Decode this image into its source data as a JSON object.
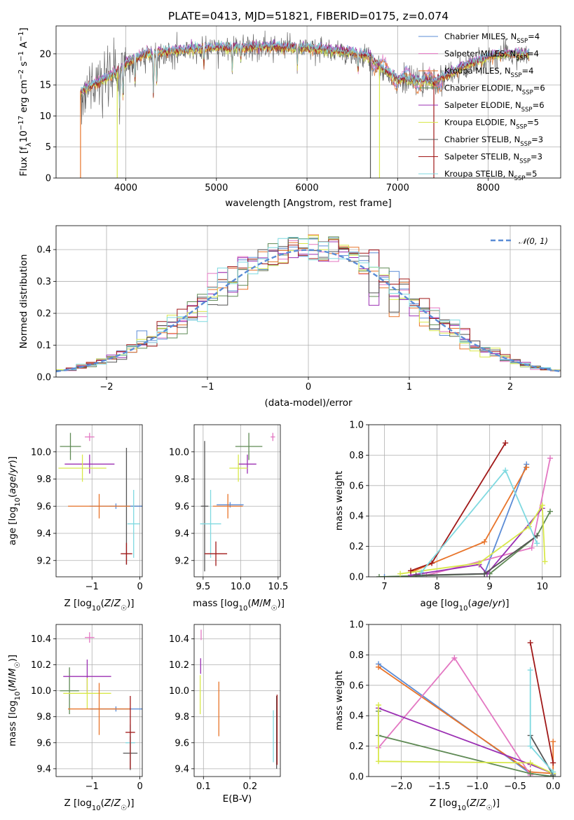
{
  "colors": {
    "Chabrier MILES": "#5b8cd6",
    "Salpeter MILES": "#e377c2",
    "Kroupa MILES": "#e8742a",
    "Chabrier ELODIE": "#5f8a55",
    "Salpeter ELODIE": "#9b2fb3",
    "Kroupa ELODIE": "#d8e84a",
    "Chabrier STELIB": "#555555",
    "Salpeter STELIB": "#a01818",
    "Kroupa STELIB": "#7fd9e0",
    "normal": "#5b8cd6"
  },
  "chart_data": [
    {
      "id": "spectrum",
      "type": "line",
      "title": "PLATE=0413, MJD=51821, FIBERID=0175, z=0.074",
      "xlabel": "wavelength [Angstrom, rest frame]",
      "ylabel": "Flux [fλ10⁻¹⁷ erg cm⁻² s⁻¹ Å⁻¹]",
      "xlim": [
        3230,
        8800
      ],
      "ylim": [
        0,
        24.5
      ],
      "xticks": [
        4000,
        5000,
        6000,
        7000,
        8000
      ],
      "yticks": [
        0,
        5,
        10,
        15,
        20
      ],
      "legend_position": "upper right",
      "legend": [
        {
          "model": "Chabrier MILES",
          "label": "Chabrier MILES, N",
          "sub": "SSP",
          "n": "=4"
        },
        {
          "model": "Salpeter MILES",
          "label": "Salpeter MILES, N",
          "sub": "SSP",
          "n": "=4"
        },
        {
          "model": "Kroupa MILES",
          "label": "Kroupa MILES, N",
          "sub": "SSP",
          "n": "=4"
        },
        {
          "model": "Chabrier ELODIE",
          "label": "Chabrier ELODIE, N",
          "sub": "SSP",
          "n": "=6"
        },
        {
          "model": "Salpeter ELODIE",
          "label": "Salpeter ELODIE, N",
          "sub": "SSP",
          "n": "=6"
        },
        {
          "model": "Kroupa ELODIE",
          "label": "Kroupa ELODIE, N",
          "sub": "SSP",
          "n": "=5"
        },
        {
          "model": "Chabrier STELIB",
          "label": "Chabrier STELIB, N",
          "sub": "SSP",
          "n": "=3"
        },
        {
          "model": "Salpeter STELIB",
          "label": "Salpeter STELIB, N",
          "sub": "SSP",
          "n": "=3"
        },
        {
          "model": "Kroupa STELIB",
          "label": "Kroupa STELIB, N",
          "sub": "SSP",
          "n": "=5"
        }
      ],
      "data_range": [
        3500,
        8450
      ],
      "continuum": [
        [
          3500,
          14
        ],
        [
          3700,
          15.5
        ],
        [
          3900,
          17
        ],
        [
          4000,
          18.5
        ],
        [
          4200,
          20
        ],
        [
          4500,
          20.5
        ],
        [
          5000,
          21
        ],
        [
          5500,
          21.2
        ],
        [
          6000,
          21
        ],
        [
          6500,
          20.2
        ],
        [
          6700,
          19.5
        ],
        [
          6800,
          18
        ],
        [
          7000,
          16
        ],
        [
          7400,
          15.5
        ],
        [
          7800,
          18.5
        ],
        [
          8100,
          20
        ],
        [
          8450,
          20
        ]
      ],
      "absorption_lines": [
        [
          3933,
          6
        ],
        [
          3969,
          5
        ],
        [
          4102,
          4
        ],
        [
          4304,
          7
        ],
        [
          4341,
          5
        ],
        [
          4861,
          3
        ],
        [
          5175,
          4
        ],
        [
          5270,
          2
        ],
        [
          5893,
          3
        ],
        [
          6563,
          3
        ]
      ],
      "spikes": [
        3500,
        3905,
        6700,
        6800,
        7400
      ]
    },
    {
      "id": "residuals",
      "type": "histogram",
      "xlabel": "(data-model)/error",
      "ylabel": "Normed distribution",
      "xlim": [
        -2.5,
        2.5
      ],
      "ylim": [
        0,
        0.475
      ],
      "xticks": [
        -2,
        -1,
        0,
        1,
        2
      ],
      "yticks": [
        0.0,
        0.1,
        0.2,
        0.3,
        0.4
      ],
      "bin_width": 0.1,
      "legend_position": "upper right",
      "legend": {
        "label": "𝒩(0, 1)",
        "style": "dashed"
      },
      "normal": {
        "mu": 0,
        "sigma": 1
      }
    },
    {
      "id": "age_vs_Z",
      "type": "errorbar",
      "xlabel": "Z [log₁₀(Z/Z☉)]",
      "ylabel": "age  [log₁₀(age/yr)]",
      "xlim": [
        -1.75,
        0.05
      ],
      "ylim": [
        9.08,
        10.2
      ],
      "xticks": [
        -1,
        0
      ],
      "yticks": [
        9.2,
        9.4,
        9.6,
        9.8,
        10.0
      ],
      "points": [
        {
          "model": "Salpeter MILES",
          "x": -1.05,
          "xerr": 0.1,
          "y": 10.11,
          "yerr": 0.03
        },
        {
          "model": "Chabrier ELODIE",
          "x": -1.45,
          "xerr": 0.22,
          "y": 10.04,
          "yerr": 0.1
        },
        {
          "model": "Salpeter ELODIE",
          "x": -1.05,
          "xerr": 0.52,
          "y": 9.91,
          "yerr": 0.07
        },
        {
          "model": "Kroupa ELODIE",
          "x": -1.2,
          "xerr": 0.5,
          "y": 9.88,
          "yerr": 0.1
        },
        {
          "model": "Chabrier STELIB",
          "x": -0.28,
          "xerr": 0.35,
          "y": 9.6,
          "yerr": 0.43
        },
        {
          "model": "Chabrier MILES",
          "x": -0.5,
          "xerr": 0.55,
          "y": 9.6,
          "yerr": 0.02
        },
        {
          "model": "Kroupa MILES",
          "x": -0.85,
          "xerr": 0.65,
          "y": 9.6,
          "yerr": 0.09
        },
        {
          "model": "Kroupa STELIB",
          "x": -0.13,
          "xerr": 0.13,
          "y": 9.47,
          "yerr": 0.25
        },
        {
          "model": "Salpeter STELIB",
          "x": -0.28,
          "xerr": 0.12,
          "y": 9.25,
          "yerr": 0.08
        }
      ]
    },
    {
      "id": "age_vs_mass",
      "type": "errorbar",
      "xlabel": "mass [log₁₀(M/M☉)]",
      "ylabel": "",
      "xlim": [
        9.38,
        10.53
      ],
      "ylim": [
        9.08,
        10.2
      ],
      "xticks": [
        9.5,
        10.0,
        10.5
      ],
      "yticks": [
        9.2,
        9.4,
        9.6,
        9.8,
        10.0
      ],
      "points": [
        {
          "model": "Salpeter MILES",
          "x": 10.43,
          "xerr": 0.03,
          "y": 10.11,
          "yerr": 0.03
        },
        {
          "model": "Chabrier ELODIE",
          "x": 10.11,
          "xerr": 0.18,
          "y": 10.04,
          "yerr": 0.1
        },
        {
          "model": "Salpeter ELODIE",
          "x": 10.09,
          "xerr": 0.12,
          "y": 9.91,
          "yerr": 0.07
        },
        {
          "model": "Kroupa ELODIE",
          "x": 9.97,
          "xerr": 0.12,
          "y": 9.88,
          "yerr": 0.1
        },
        {
          "model": "Chabrier STELIB",
          "x": 9.52,
          "xerr": 0.05,
          "y": 9.6,
          "yerr": 0.48
        },
        {
          "model": "Chabrier MILES",
          "x": 9.86,
          "xerr": 0.18,
          "y": 9.61,
          "yerr": 0.02
        },
        {
          "model": "Kroupa MILES",
          "x": 9.83,
          "xerr": 0.2,
          "y": 9.6,
          "yerr": 0.09
        },
        {
          "model": "Kroupa STELIB",
          "x": 9.6,
          "xerr": 0.14,
          "y": 9.47,
          "yerr": 0.25
        },
        {
          "model": "Salpeter STELIB",
          "x": 9.67,
          "xerr": 0.15,
          "y": 9.25,
          "yerr": 0.09
        }
      ]
    },
    {
      "id": "massweight_vs_age",
      "type": "line",
      "xlabel": "age  [log₁₀(age/yr)]",
      "ylabel": "mass weight",
      "xlim": [
        6.7,
        10.35
      ],
      "ylim": [
        0,
        1.0
      ],
      "xticks": [
        7,
        8,
        9,
        10
      ],
      "yticks": [
        0.0,
        0.2,
        0.4,
        0.6,
        0.8,
        1.0
      ],
      "series": [
        {
          "model": "Chabrier MILES",
          "x": [
            7.0,
            8.9,
            9.7
          ],
          "y": [
            0.0,
            0.02,
            0.74
          ]
        },
        {
          "model": "Salpeter MILES",
          "x": [
            7.8,
            9.8,
            10.15
          ],
          "y": [
            0.01,
            0.19,
            0.78
          ]
        },
        {
          "model": "Kroupa MILES",
          "x": [
            7.5,
            8.9,
            9.7
          ],
          "y": [
            0.03,
            0.23,
            0.72
          ]
        },
        {
          "model": "Chabrier ELODIE",
          "x": [
            6.9,
            9.0,
            9.9,
            10.15
          ],
          "y": [
            0.0,
            0.02,
            0.27,
            0.43
          ]
        },
        {
          "model": "Salpeter ELODIE",
          "x": [
            7.5,
            8.8,
            8.95,
            10.0
          ],
          "y": [
            0.01,
            0.08,
            0.02,
            0.45
          ]
        },
        {
          "model": "Kroupa ELODIE",
          "x": [
            7.3,
            8.8,
            9.75,
            10.0,
            10.05
          ],
          "y": [
            0.02,
            0.09,
            0.33,
            0.47,
            0.1
          ]
        },
        {
          "model": "Chabrier STELIB",
          "x": [
            7.6,
            8.9,
            9.9
          ],
          "y": [
            0.01,
            0.02,
            0.27
          ]
        },
        {
          "model": "Salpeter STELIB",
          "x": [
            7.5,
            7.9,
            9.3
          ],
          "y": [
            0.04,
            0.09,
            0.88
          ]
        },
        {
          "model": "Kroupa STELIB",
          "x": [
            7.7,
            9.3,
            9.9
          ],
          "y": [
            0.03,
            0.7,
            0.22
          ]
        }
      ]
    },
    {
      "id": "mass_vs_Z",
      "type": "errorbar",
      "xlabel": "Z [log₁₀(Z/Z☉)]",
      "ylabel": "mass [log₁₀(M/M☉)]",
      "xlim": [
        -1.75,
        0.05
      ],
      "ylim": [
        9.34,
        10.51
      ],
      "xticks": [
        -1,
        0
      ],
      "yticks": [
        9.4,
        9.6,
        9.8,
        10.0,
        10.2,
        10.4
      ],
      "points": [
        {
          "model": "Salpeter MILES",
          "x": -1.05,
          "xerr": 0.1,
          "y": 10.41,
          "yerr": 0.04
        },
        {
          "model": "Chabrier ELODIE",
          "x": -1.47,
          "xerr": 0.2,
          "y": 10.0,
          "yerr": 0.18
        },
        {
          "model": "Salpeter ELODIE",
          "x": -1.1,
          "xerr": 0.5,
          "y": 10.11,
          "yerr": 0.13
        },
        {
          "model": "Kroupa ELODIE",
          "x": -1.1,
          "xerr": 0.5,
          "y": 9.98,
          "yerr": 0.12
        },
        {
          "model": "Chabrier MILES",
          "x": -0.5,
          "xerr": 0.55,
          "y": 9.86,
          "yerr": 0.02
        },
        {
          "model": "Kroupa MILES",
          "x": -0.85,
          "xerr": 0.65,
          "y": 9.86,
          "yerr": 0.2
        },
        {
          "model": "Chabrier STELIB",
          "x": -0.2,
          "xerr": 0.15,
          "y": 9.52,
          "yerr": 0.13
        },
        {
          "model": "Kroupa STELIB",
          "x": -0.2,
          "xerr": 0.1,
          "y": 9.6,
          "yerr": 0.14
        },
        {
          "model": "Salpeter STELIB",
          "x": -0.2,
          "xerr": 0.1,
          "y": 9.68,
          "yerr": 0.28
        }
      ]
    },
    {
      "id": "mass_vs_ebv",
      "type": "errorbar",
      "xlabel": "E(B-V)",
      "ylabel": "",
      "xlim": [
        0.08,
        0.265
      ],
      "ylim": [
        9.34,
        10.51
      ],
      "xticks": [
        0.1,
        0.2
      ],
      "yticks": [
        9.4,
        9.6,
        9.8,
        10.0,
        10.2,
        10.4
      ],
      "points": [
        {
          "model": "Salpeter MILES",
          "x": 0.095,
          "y": 10.43,
          "yerr": 0.04
        },
        {
          "model": "Salpeter ELODIE",
          "x": 0.094,
          "y": 10.19,
          "yerr": 0.06
        },
        {
          "model": "Kroupa ELODIE",
          "x": 0.093,
          "y": 9.97,
          "yerr": 0.15
        },
        {
          "model": "Kroupa MILES",
          "x": 0.133,
          "y": 9.86,
          "yerr": 0.21
        },
        {
          "model": "Kroupa STELIB",
          "x": 0.25,
          "y": 9.65,
          "yerr": 0.2
        },
        {
          "model": "Chabrier STELIB",
          "x": 0.257,
          "y": 9.68,
          "yerr": 0.28
        },
        {
          "model": "Salpeter STELIB",
          "x": 0.258,
          "y": 9.7,
          "yerr": 0.27
        }
      ]
    },
    {
      "id": "massweight_vs_Z",
      "type": "line",
      "xlabel": "Z [log₁₀(Z/Z☉)]",
      "ylabel": "mass weight",
      "xlim": [
        -2.43,
        0.1
      ],
      "ylim": [
        0,
        1.0
      ],
      "xticks": [
        -2.0,
        -1.5,
        -1.0,
        -0.5,
        0.0
      ],
      "yticks": [
        0.0,
        0.2,
        0.4,
        0.6,
        0.8,
        1.0
      ],
      "series": [
        {
          "model": "Chabrier MILES",
          "x": [
            -2.3,
            -0.3,
            0.0
          ],
          "y": [
            0.74,
            0.02,
            0.0
          ]
        },
        {
          "model": "Kroupa MILES",
          "x": [
            -2.3,
            -0.3,
            0.0,
            0.0
          ],
          "y": [
            0.72,
            0.03,
            0.02,
            0.23
          ]
        },
        {
          "model": "Salpeter MILES",
          "x": [
            -2.3,
            -1.3,
            -0.3
          ],
          "y": [
            0.19,
            0.78,
            0.01
          ]
        },
        {
          "model": "Chabrier ELODIE",
          "x": [
            -2.3,
            -2.3,
            -0.3,
            0.0
          ],
          "y": [
            0.43,
            0.27,
            0.02,
            0.0
          ]
        },
        {
          "model": "Salpeter ELODIE",
          "x": [
            -2.3,
            -0.3,
            0.0
          ],
          "y": [
            0.45,
            0.08,
            0.02
          ]
        },
        {
          "model": "Kroupa ELODIE",
          "x": [
            -2.3,
            -2.3,
            -0.3,
            0.0
          ],
          "y": [
            0.47,
            0.1,
            0.09,
            0.02
          ]
        },
        {
          "model": "Chabrier STELIB",
          "x": [
            -0.3,
            0.0
          ],
          "y": [
            0.27,
            0.01
          ]
        },
        {
          "model": "Salpeter STELIB",
          "x": [
            -0.3,
            0.0
          ],
          "y": [
            0.88,
            0.09
          ]
        },
        {
          "model": "Kroupa STELIB",
          "x": [
            -0.3,
            -0.3,
            0.0
          ],
          "y": [
            0.7,
            0.2,
            0.03
          ]
        }
      ]
    }
  ]
}
